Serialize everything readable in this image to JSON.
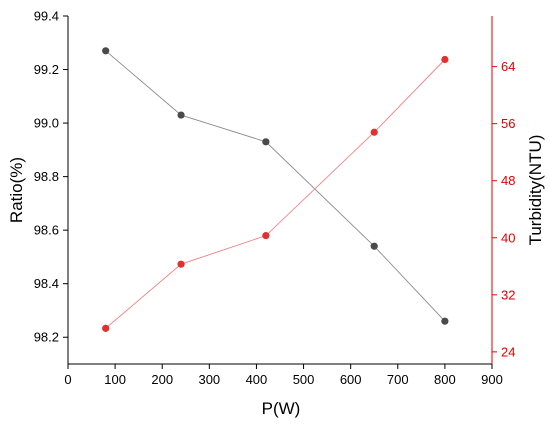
{
  "chart_data": {
    "type": "line",
    "title": "",
    "xlabel": "P(W)",
    "ylabel": "Ratio(%)",
    "y2label": "Turbidity(NTU)",
    "xlim": [
      0,
      900
    ],
    "ylim": [
      98.1,
      99.4
    ],
    "y2lim": [
      22.3,
      71.1
    ],
    "xticks": [
      "0",
      "100",
      "200",
      "300",
      "400",
      "500",
      "600",
      "700",
      "800",
      "900"
    ],
    "yticks": [
      "98.2",
      "98.4",
      "98.6",
      "98.8",
      "99.0",
      "99.2",
      "99.4"
    ],
    "y2ticks": [
      "24",
      "32",
      "40",
      "48",
      "56",
      "64"
    ],
    "grid": false,
    "legend": "none",
    "x": [
      80,
      240,
      420,
      650,
      800
    ],
    "series": [
      {
        "axis": "left",
        "color": "#4a4a4a",
        "line_color": "#8a8a8a",
        "values": [
          99.27,
          99.03,
          98.93,
          98.54,
          98.26
        ]
      },
      {
        "axis": "right",
        "color": "#e03030",
        "line_color": "#f08080",
        "values": [
          27.3,
          36.3,
          40.3,
          54.8,
          65.0
        ]
      }
    ],
    "colors": {
      "left_axis": "#000000",
      "right_axis": "#e00000"
    }
  }
}
